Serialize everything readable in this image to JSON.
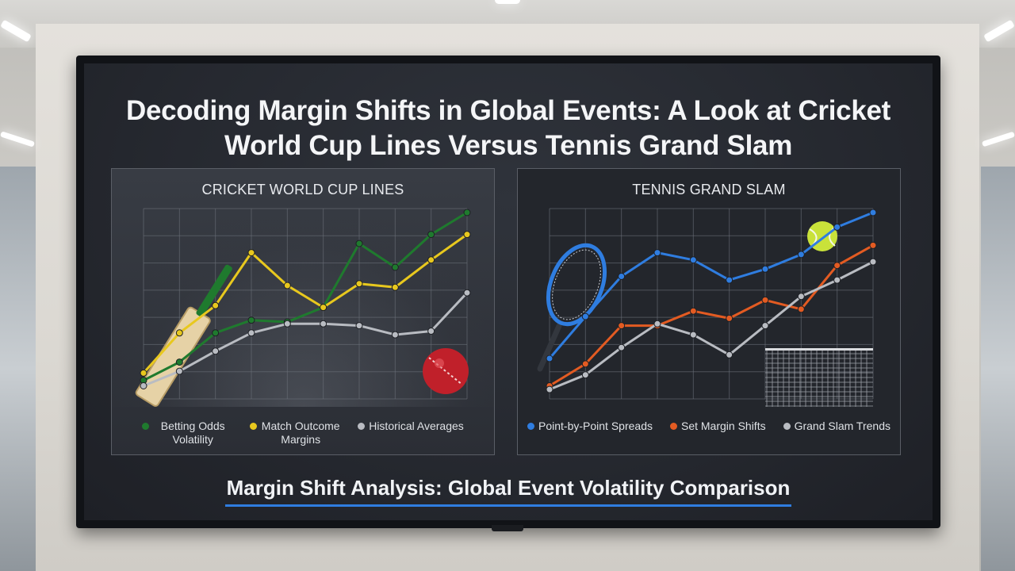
{
  "title": "Decoding Margin Shifts in Global Events: A Look at Cricket World Cup Lines Versus Tennis Grand Slam",
  "subtitle": "Margin Shift Analysis: Global Event Volatility Comparison",
  "chart_data": [
    {
      "type": "line",
      "title": "CRICKET WORLD CUP LINES",
      "x": [
        0,
        1,
        2,
        3,
        4,
        5,
        6,
        7,
        8,
        9
      ],
      "series": [
        {
          "name": "Betting Odds Volatility",
          "color": "#1f7a2e",
          "values": [
            8,
            18,
            34,
            41,
            40,
            48,
            83,
            70,
            88,
            100
          ]
        },
        {
          "name": "Match Outcome Margins",
          "color": "#e8c81e",
          "values": [
            12,
            34,
            49,
            78,
            60,
            48,
            61,
            59,
            74,
            88
          ]
        },
        {
          "name": "Historical Averages",
          "color": "#b9bcc2",
          "values": [
            5,
            13,
            24,
            34,
            39,
            39,
            38,
            33,
            35,
            56
          ]
        }
      ],
      "ylim": [
        0,
        100
      ],
      "grid": true,
      "legend": "bottom"
    },
    {
      "type": "line",
      "title": "TENNIS GRAND SLAM",
      "x": [
        0,
        1,
        2,
        3,
        4,
        5,
        6,
        7,
        8,
        9
      ],
      "series": [
        {
          "name": "Point-by-Point Spreads",
          "color": "#2f7de0",
          "values": [
            20,
            43,
            65,
            78,
            74,
            63,
            69,
            77,
            92,
            100
          ]
        },
        {
          "name": "Set Margin Shifts",
          "color": "#e35b22",
          "values": [
            5,
            17,
            38,
            38,
            46,
            42,
            52,
            47,
            71,
            82
          ]
        },
        {
          "name": "Grand Slam Trends",
          "color": "#b9bcc2",
          "values": [
            3,
            11,
            26,
            39,
            33,
            22,
            38,
            54,
            63,
            73
          ]
        }
      ],
      "ylim": [
        0,
        100
      ],
      "grid": true,
      "legend": "bottom"
    }
  ]
}
